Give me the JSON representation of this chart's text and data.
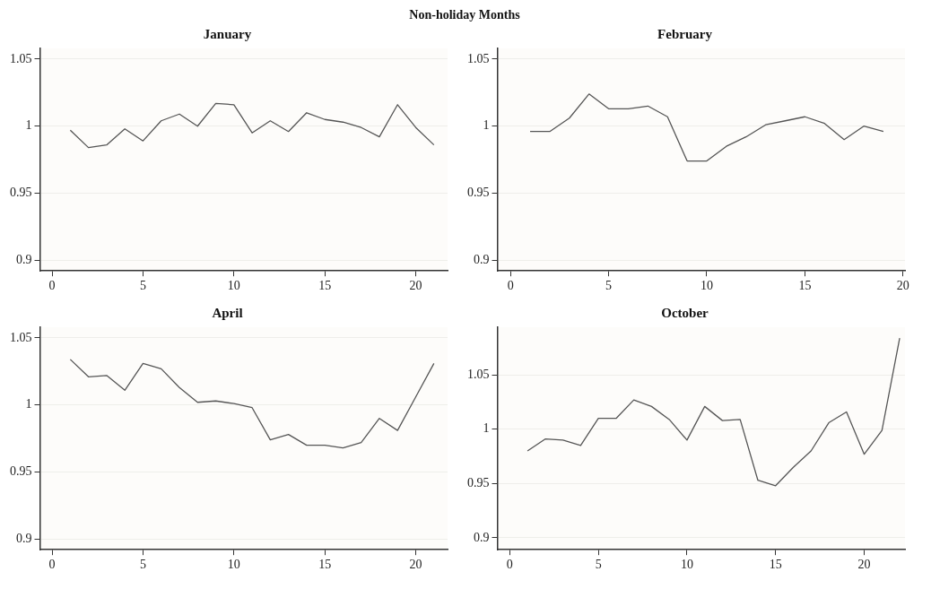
{
  "chart_data": [
    {
      "type": "line",
      "title": "January",
      "annotations": [
        "Non-holiday Months"
      ],
      "x": [
        1,
        2,
        3,
        4,
        5,
        6,
        7,
        8,
        9,
        10,
        11,
        12,
        13,
        14,
        15,
        16,
        17,
        18,
        19,
        20,
        21
      ],
      "series": [
        {
          "color": "#555555",
          "values": [
            0.997,
            0.984,
            0.986,
            0.998,
            0.989,
            1.004,
            1.009,
            1.0,
            1.017,
            1.016,
            0.995,
            1.004,
            0.996,
            1.01,
            1.005,
            1.003,
            0.999,
            0.992,
            1.016,
            0.999,
            0.986
          ]
        }
      ],
      "xlim": [
        -0.67,
        21.75
      ],
      "xticks": [
        0,
        5,
        10,
        15,
        20
      ],
      "ylim": [
        0.892,
        1.058
      ],
      "yticks": [
        0.9,
        0.95,
        1,
        1.05
      ],
      "grid": "y",
      "marker": "none",
      "line_style": "solid"
    },
    {
      "type": "line",
      "title": "February",
      "x": [
        1,
        2,
        3,
        4,
        5,
        6,
        7,
        8,
        9,
        10,
        11,
        12,
        13,
        14,
        15,
        16,
        17,
        18,
        19
      ],
      "series": [
        {
          "color": "#555555",
          "values": [
            0.996,
            0.996,
            1.006,
            1.024,
            1.013,
            1.013,
            1.015,
            1.007,
            0.974,
            0.974,
            0.985,
            0.992,
            1.001,
            1.004,
            1.007,
            1.002,
            0.99,
            1.0,
            0.996
          ]
        }
      ],
      "xlim": [
        -0.67,
        20.1
      ],
      "xticks": [
        0,
        5,
        10,
        15,
        20
      ],
      "ylim": [
        0.892,
        1.058
      ],
      "yticks": [
        0.9,
        0.95,
        1,
        1.05
      ],
      "grid": "y",
      "marker": "none",
      "line_style": "solid"
    },
    {
      "type": "line",
      "title": "April",
      "x": [
        1,
        2,
        3,
        4,
        5,
        6,
        7,
        8,
        9,
        10,
        11,
        12,
        13,
        14,
        15,
        16,
        17,
        18,
        19,
        20,
        21
      ],
      "series": [
        {
          "color": "#555555",
          "values": [
            1.034,
            1.021,
            1.022,
            1.011,
            1.031,
            1.027,
            1.013,
            1.002,
            1.003,
            1.001,
            0.998,
            0.974,
            0.978,
            0.97,
            0.97,
            0.968,
            0.972,
            0.99,
            0.981,
            1.006,
            1.031
          ]
        }
      ],
      "xlim": [
        -0.67,
        21.75
      ],
      "xticks": [
        0,
        5,
        10,
        15,
        20
      ],
      "ylim": [
        0.892,
        1.058
      ],
      "yticks": [
        0.9,
        0.95,
        1,
        1.05
      ],
      "grid": "y",
      "marker": "none",
      "line_style": "solid"
    },
    {
      "type": "line",
      "title": "October",
      "x": [
        1,
        2,
        3,
        4,
        5,
        6,
        7,
        8,
        9,
        10,
        11,
        12,
        13,
        14,
        15,
        16,
        17,
        18,
        19,
        20,
        21,
        22
      ],
      "series": [
        {
          "color": "#555555",
          "values": [
            0.98,
            0.991,
            0.99,
            0.985,
            1.01,
            1.01,
            1.027,
            1.021,
            1.009,
            0.99,
            1.021,
            1.008,
            1.009,
            0.953,
            0.948,
            0.965,
            0.98,
            1.006,
            1.016,
            0.977,
            0.999,
            1.084
          ]
        }
      ],
      "xlim": [
        -0.7,
        22.3
      ],
      "xticks": [
        0,
        5,
        10,
        15,
        20
      ],
      "ylim": [
        0.889,
        1.094
      ],
      "yticks": [
        0.9,
        0.95,
        1,
        1.05
      ],
      "grid": "y",
      "marker": "none",
      "line_style": "solid"
    }
  ]
}
